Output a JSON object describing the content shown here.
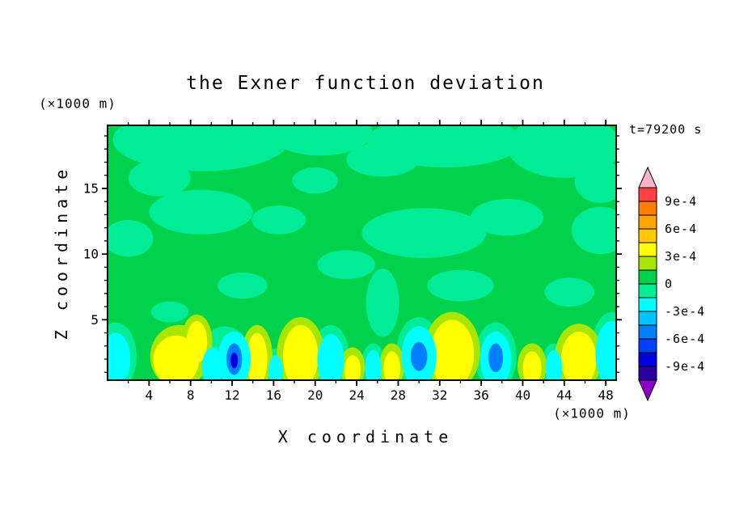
{
  "page": {
    "background": "#ffffff"
  },
  "chart_data": {
    "type": "heatmap",
    "subtype": "filled_contour",
    "title": "the Exner function deviation",
    "annotation": "t=79200 s",
    "xlabel": "X coordinate",
    "x_units": "(×1000 m)",
    "ylabel": "Z coordinate",
    "y_units": "(×1000 m)",
    "xlim": [
      0,
      49
    ],
    "ylim": [
      0.4,
      19.8
    ],
    "x_ticks": [
      4,
      8,
      12,
      16,
      20,
      24,
      28,
      32,
      36,
      40,
      44,
      48
    ],
    "x_minor_step": 2,
    "y_ticks": [
      5,
      10,
      15
    ],
    "y_minor_step": 1,
    "grid": false,
    "legend_position": "right",
    "colorbar": {
      "labels": [
        "9e-4",
        "6e-4",
        "3e-4",
        "0",
        "-3e-4",
        "-6e-4",
        "-9e-4"
      ],
      "label_values": [
        0.0009,
        0.0006,
        0.0003,
        0,
        -0.0003,
        -0.0006,
        -0.0009
      ],
      "level_step": 0.00015,
      "level_min": -0.00105,
      "level_max": 0.00105,
      "cell_colors": [
        "#FF4141",
        "#FF7D00",
        "#FFA500",
        "#FFC800",
        "#FFFF00",
        "#A8E600",
        "#00D24B",
        "#00EC96",
        "#00FFFF",
        "#00C3FF",
        "#0080FF",
        "#0040FF",
        "#0000E0",
        "#2800A0"
      ],
      "over_color": "#FFB4C8",
      "under_color": "#8C00C8"
    },
    "field": {
      "description": "Exner function deviation: near zero (0 to 1.5e-4, green) over most of the domain; weakly negative patches (-1.5e-4 to 0) aloft; alternating positive (~3e-4, yellow) and negative (~-3e-4 to -7e-4, cyan/blue) cells below z=5 km.",
      "background_level": 6,
      "blobs": [
        {
          "x": 9,
          "z": 18.7,
          "rx": 8.5,
          "rz": 2.4,
          "level": 7
        },
        {
          "x": 20.5,
          "z": 19.3,
          "rx": 5,
          "rz": 1.8,
          "level": 7
        },
        {
          "x": 32.5,
          "z": 18.6,
          "rx": 7.5,
          "rz": 2,
          "level": 7
        },
        {
          "x": 44,
          "z": 18.2,
          "rx": 5.5,
          "rz": 2.4,
          "level": 7
        },
        {
          "x": 26.5,
          "z": 17.2,
          "rx": 3.5,
          "rz": 1.3,
          "level": 7
        },
        {
          "x": 5,
          "z": 15.8,
          "rx": 3,
          "rz": 1.4,
          "level": 7
        },
        {
          "x": 47.5,
          "z": 15.5,
          "rx": 2.5,
          "rz": 1.6,
          "level": 7
        },
        {
          "x": 20,
          "z": 15.6,
          "rx": 2.2,
          "rz": 1,
          "level": 7
        },
        {
          "x": 9,
          "z": 13.2,
          "rx": 5,
          "rz": 1.7,
          "level": 7
        },
        {
          "x": 16.5,
          "z": 12.6,
          "rx": 2.6,
          "rz": 1.1,
          "level": 7
        },
        {
          "x": 2,
          "z": 11.2,
          "rx": 2.4,
          "rz": 1.4,
          "level": 7
        },
        {
          "x": 30.5,
          "z": 11.6,
          "rx": 6,
          "rz": 1.9,
          "level": 7
        },
        {
          "x": 38.5,
          "z": 12.8,
          "rx": 3.5,
          "rz": 1.4,
          "level": 7
        },
        {
          "x": 47.5,
          "z": 11.8,
          "rx": 2.8,
          "rz": 1.8,
          "level": 7
        },
        {
          "x": 23,
          "z": 9.2,
          "rx": 2.8,
          "rz": 1.1,
          "level": 7
        },
        {
          "x": 13,
          "z": 7.6,
          "rx": 2.4,
          "rz": 1,
          "level": 7
        },
        {
          "x": 34,
          "z": 7.6,
          "rx": 3.2,
          "rz": 1.2,
          "level": 7
        },
        {
          "x": 44.5,
          "z": 7.1,
          "rx": 2.4,
          "rz": 1.1,
          "level": 7
        },
        {
          "x": 26.5,
          "z": 6.3,
          "rx": 1.6,
          "rz": 2.6,
          "level": 7
        },
        {
          "x": 6,
          "z": 5.6,
          "rx": 1.8,
          "rz": 0.8,
          "level": 7
        },
        {
          "x": 0.8,
          "z": 2.2,
          "rx": 2,
          "rz": 2.6,
          "level": 7
        },
        {
          "x": 11.3,
          "z": 1.9,
          "rx": 2.6,
          "rz": 2.6,
          "level": 7
        },
        {
          "x": 16.2,
          "z": 1.2,
          "rx": 1.1,
          "rz": 1.6,
          "level": 7
        },
        {
          "x": 21.5,
          "z": 2.1,
          "rx": 1.8,
          "rz": 2.5,
          "level": 7
        },
        {
          "x": 25.6,
          "z": 1.4,
          "rx": 1.2,
          "rz": 1.8,
          "level": 7
        },
        {
          "x": 30,
          "z": 2.4,
          "rx": 2.2,
          "rz": 2.8,
          "level": 7
        },
        {
          "x": 37.4,
          "z": 2.2,
          "rx": 2,
          "rz": 2.6,
          "level": 7
        },
        {
          "x": 43,
          "z": 1.4,
          "rx": 1.2,
          "rz": 1.8,
          "level": 7
        },
        {
          "x": 48.6,
          "z": 2.6,
          "rx": 2,
          "rz": 3,
          "level": 7
        },
        {
          "x": 6.9,
          "z": 2.2,
          "rx": 2.8,
          "rz": 2.4,
          "level": 5
        },
        {
          "x": 8.6,
          "z": 3.4,
          "rx": 1.5,
          "rz": 2,
          "level": 5
        },
        {
          "x": 14.4,
          "z": 2.2,
          "rx": 1.5,
          "rz": 2.4,
          "level": 5
        },
        {
          "x": 18.6,
          "z": 2.4,
          "rx": 2.3,
          "rz": 2.8,
          "level": 5
        },
        {
          "x": 23.6,
          "z": 1.4,
          "rx": 1.2,
          "rz": 1.5,
          "level": 5
        },
        {
          "x": 27.4,
          "z": 1.5,
          "rx": 1.2,
          "rz": 1.7,
          "level": 5
        },
        {
          "x": 33.2,
          "z": 2.6,
          "rx": 2.7,
          "rz": 3,
          "level": 5
        },
        {
          "x": 40.9,
          "z": 1.5,
          "rx": 1.4,
          "rz": 1.7,
          "level": 5
        },
        {
          "x": 45.4,
          "z": 2.2,
          "rx": 2.3,
          "rz": 2.5,
          "level": 5
        },
        {
          "x": 6.6,
          "z": 1.9,
          "rx": 2.2,
          "rz": 1.9,
          "level": 4
        },
        {
          "x": 8.6,
          "z": 3.3,
          "rx": 1,
          "rz": 1.6,
          "level": 4
        },
        {
          "x": 14.4,
          "z": 2,
          "rx": 1,
          "rz": 2,
          "level": 4
        },
        {
          "x": 18.6,
          "z": 2.2,
          "rx": 1.7,
          "rz": 2.4,
          "level": 4
        },
        {
          "x": 23.6,
          "z": 1.2,
          "rx": 0.8,
          "rz": 1.1,
          "level": 4
        },
        {
          "x": 27.4,
          "z": 1.3,
          "rx": 0.8,
          "rz": 1.3,
          "level": 4
        },
        {
          "x": 33.2,
          "z": 2.4,
          "rx": 2.1,
          "rz": 2.6,
          "level": 4
        },
        {
          "x": 40.9,
          "z": 1.3,
          "rx": 0.9,
          "rz": 1.3,
          "level": 4
        },
        {
          "x": 45.4,
          "z": 2,
          "rx": 1.7,
          "rz": 2.1,
          "level": 4
        },
        {
          "x": 0.8,
          "z": 2,
          "rx": 1.4,
          "rz": 2,
          "level": 8
        },
        {
          "x": 10.1,
          "z": 1.4,
          "rx": 1,
          "rz": 1.5,
          "level": 8
        },
        {
          "x": 12.2,
          "z": 2,
          "rx": 1.6,
          "rz": 2.1,
          "level": 8
        },
        {
          "x": 16.2,
          "z": 1.1,
          "rx": 0.7,
          "rz": 1.2,
          "level": 8
        },
        {
          "x": 21.5,
          "z": 1.9,
          "rx": 1.3,
          "rz": 2,
          "level": 8
        },
        {
          "x": 25.6,
          "z": 1.3,
          "rx": 0.8,
          "rz": 1.4,
          "level": 8
        },
        {
          "x": 30,
          "z": 2.2,
          "rx": 1.7,
          "rz": 2.3,
          "level": 8
        },
        {
          "x": 37.4,
          "z": 2,
          "rx": 1.5,
          "rz": 2.1,
          "level": 8
        },
        {
          "x": 43,
          "z": 1.3,
          "rx": 0.8,
          "rz": 1.4,
          "level": 8
        },
        {
          "x": 48.6,
          "z": 2.4,
          "rx": 1.6,
          "rz": 2.5,
          "level": 8
        },
        {
          "x": 12.2,
          "z": 2,
          "rx": 0.75,
          "rz": 1.2,
          "level": 10
        },
        {
          "x": 30,
          "z": 2.2,
          "rx": 0.8,
          "rz": 1.1,
          "level": 10
        },
        {
          "x": 37.4,
          "z": 2.1,
          "rx": 0.7,
          "rz": 1.1,
          "level": 10
        },
        {
          "x": 12.2,
          "z": 1.9,
          "rx": 0.35,
          "rz": 0.6,
          "level": 12
        }
      ]
    }
  }
}
